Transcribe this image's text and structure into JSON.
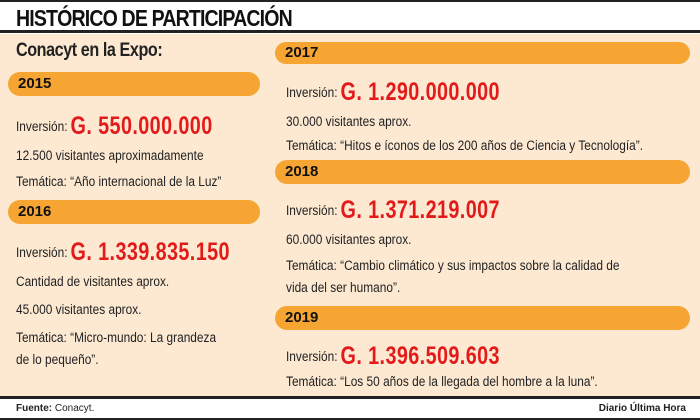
{
  "title": "HISTÓRICO DE PARTICIPACIÓN",
  "subtitle": "Conacyt en la Expo:",
  "inv_label": "Inversión:",
  "years": [
    {
      "year": "2015",
      "amount": "G. 550.000.000",
      "lines": [
        "12.500 visitantes aproximadamente",
        "Temática: “Año internacional de la Luz”"
      ]
    },
    {
      "year": "2016",
      "amount": "G. 1.339.835.150",
      "lines": [
        "Cantidad de visitantes aprox.",
        "45.000 visitantes aprox.",
        "Temática: “Micro-mundo: La grandeza",
        "de lo pequeño”."
      ]
    },
    {
      "year": "2017",
      "amount": "G. 1.290.000.000",
      "lines": [
        "30.000 visitantes aprox.",
        "Temática: “Hitos e íconos de los 200 años de Ciencia y Tecnología”."
      ]
    },
    {
      "year": "2018",
      "amount": "G. 1.371.219.007",
      "lines": [
        "60.000 visitantes aprox.",
        "Temática: “Cambio climático y sus impactos sobre la calidad de",
        "vida del ser humano”."
      ]
    },
    {
      "year": "2019",
      "amount": "G. 1.396.509.603",
      "lines": [
        "Temática: “Los 50 años de la llegada del hombre a la luna”."
      ]
    }
  ],
  "footer": {
    "source_label": "Fuente:",
    "source": "Conacyt.",
    "credit": "Diario Última Hora"
  },
  "colors": {
    "accent": "#f6a532",
    "amount": "#e31a1a",
    "background": "#fde9d2"
  }
}
